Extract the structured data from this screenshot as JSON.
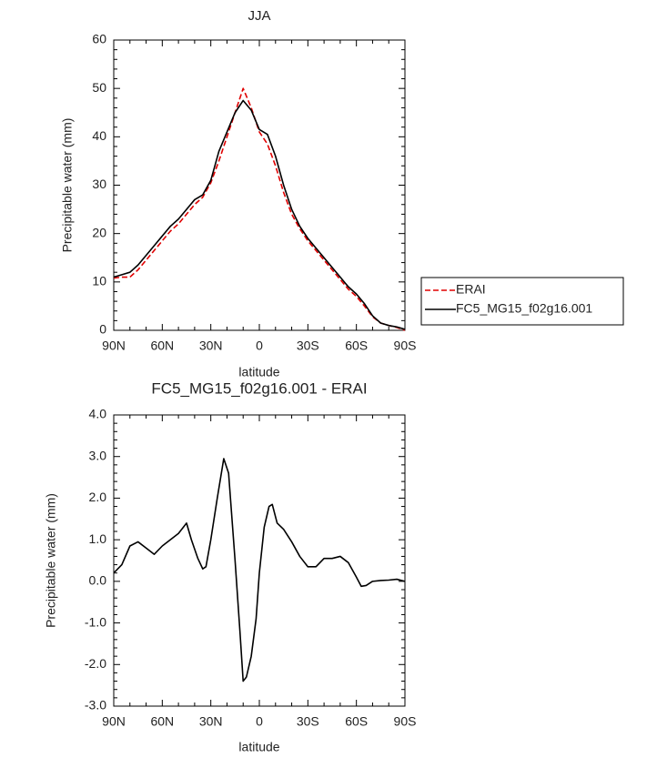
{
  "chart_data": [
    {
      "type": "line",
      "title": "JJA",
      "xlabel": "latitude",
      "ylabel": "Precipitable water (mm)",
      "x": [
        90,
        85,
        80,
        75,
        70,
        65,
        60,
        55,
        50,
        45,
        40,
        35,
        30,
        25,
        20,
        15,
        10,
        5,
        0,
        -5,
        -10,
        -15,
        -20,
        -25,
        -30,
        -35,
        -40,
        -45,
        -50,
        -55,
        -60,
        -65,
        -70,
        -75,
        -80,
        -85,
        -90
      ],
      "series": [
        {
          "name": "ERAI",
          "color": "#e00000",
          "dash": true,
          "values": [
            10.8,
            11,
            11,
            12.5,
            14.5,
            16.5,
            18.5,
            20.5,
            22,
            24,
            26,
            27.5,
            30.5,
            35,
            40,
            45,
            50,
            46,
            41,
            38.5,
            34,
            28.5,
            24,
            21,
            18.5,
            16.5,
            14.5,
            12.5,
            10.5,
            8.5,
            7,
            5,
            2.8,
            1.5,
            1,
            0.6,
            0
          ]
        },
        {
          "name": "FC5_MG15_f02g16.001",
          "color": "#000000",
          "dash": false,
          "values": [
            11,
            11.5,
            12,
            13.5,
            15.5,
            17.5,
            19.5,
            21.5,
            23,
            25,
            27,
            28,
            31,
            37,
            41,
            45,
            47.5,
            45.5,
            41.5,
            40.5,
            36,
            30,
            25,
            21.5,
            19,
            17,
            15,
            13,
            11,
            9,
            7.5,
            5.5,
            3,
            1.5,
            1,
            0.7,
            0.2
          ]
        }
      ],
      "xlim": [
        90,
        -90
      ],
      "xticks": [
        {
          "value": 90,
          "label": "90N"
        },
        {
          "value": 60,
          "label": "60N"
        },
        {
          "value": 30,
          "label": "30N"
        },
        0,
        {
          "value": -30,
          "label": "30S"
        },
        {
          "value": -60,
          "label": "60S"
        },
        {
          "value": -90,
          "label": "90S"
        }
      ],
      "ylim": [
        0,
        60
      ],
      "yticks": [
        0,
        10,
        20,
        30,
        40,
        50,
        60
      ]
    },
    {
      "type": "line",
      "title": "FC5_MG15_f02g16.001 - ERAI",
      "xlabel": "latitude",
      "ylabel": "Precipitable water (mm)",
      "x": [
        90,
        85,
        80,
        75,
        70,
        65,
        60,
        55,
        50,
        45,
        42,
        38,
        35,
        33,
        30,
        26,
        22,
        19,
        15,
        12,
        10,
        8,
        5,
        2,
        0,
        -3,
        -6,
        -8,
        -11,
        -15,
        -20,
        -25,
        -30,
        -35,
        -40,
        -45,
        -50,
        -55,
        -60,
        -63,
        -66,
        -70,
        -75,
        -80,
        -85,
        -90
      ],
      "series": [
        {
          "color": "#000000",
          "dash": false,
          "values": [
            0.2,
            0.4,
            0.85,
            0.95,
            0.8,
            0.65,
            0.85,
            1.0,
            1.15,
            1.4,
            1.0,
            0.55,
            0.3,
            0.35,
            1.0,
            2.0,
            2.95,
            2.6,
            0.5,
            -1.2,
            -2.4,
            -2.3,
            -1.8,
            -0.9,
            0.2,
            1.3,
            1.8,
            1.85,
            1.4,
            1.25,
            0.95,
            0.6,
            0.35,
            0.35,
            0.55,
            0.55,
            0.6,
            0.45,
            0.1,
            -0.12,
            -0.1,
            0.0,
            0.02,
            0.03,
            0.05,
            0.0
          ]
        }
      ],
      "xlim": [
        90,
        -90
      ],
      "xticks": [
        {
          "value": 90,
          "label": "90N"
        },
        {
          "value": 60,
          "label": "60N"
        },
        {
          "value": 30,
          "label": "30N"
        },
        0,
        {
          "value": -30,
          "label": "30S"
        },
        {
          "value": -60,
          "label": "60S"
        },
        {
          "value": -90,
          "label": "90S"
        }
      ],
      "ylim": [
        -3,
        4
      ],
      "yticks": [
        {
          "value": -3,
          "label": "-3.0"
        },
        {
          "value": -2,
          "label": "-2.0"
        },
        {
          "value": -1,
          "label": "-1.0"
        },
        {
          "value": 0,
          "label": "0.0"
        },
        {
          "value": 1,
          "label": "1.0"
        },
        {
          "value": 2,
          "label": "2.0"
        },
        {
          "value": 3,
          "label": "3.0"
        },
        {
          "value": 4,
          "label": "4.0"
        }
      ]
    }
  ]
}
